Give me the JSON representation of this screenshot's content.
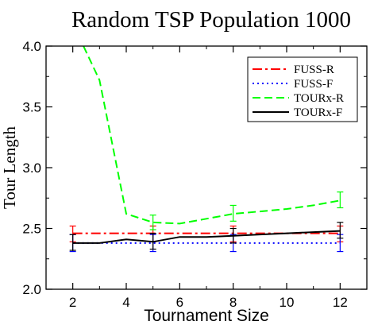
{
  "chart_data": {
    "type": "line",
    "title": "Random TSP  Population 1000",
    "xlabel": "Tournament Size",
    "ylabel": "Tour Length",
    "xlim": [
      1,
      13
    ],
    "ylim": [
      2.0,
      4.0
    ],
    "x_ticks": [
      2,
      4,
      6,
      8,
      10,
      12
    ],
    "y_ticks": [
      2.0,
      2.5,
      3.0,
      3.5,
      4.0
    ],
    "x_tick_labels": [
      "2",
      "4",
      "6",
      "8",
      "10",
      "12"
    ],
    "y_tick_labels": [
      "2.0",
      "2.5",
      "3.0",
      "3.5",
      "4.0"
    ],
    "grid": false,
    "legend_position": "top-right",
    "series": [
      {
        "name": "FUSS-R",
        "color": "#ff0000",
        "dash": "dash-dot",
        "x": [
          2,
          12
        ],
        "y": [
          2.46,
          2.46
        ],
        "error_bars": [
          {
            "x": 2,
            "low": 2.39,
            "high": 2.52
          },
          {
            "x": 5,
            "low": 2.39,
            "high": 2.52
          },
          {
            "x": 8,
            "low": 2.39,
            "high": 2.52
          },
          {
            "x": 12,
            "low": 2.39,
            "high": 2.52
          }
        ]
      },
      {
        "name": "FUSS-F",
        "color": "#0000ff",
        "dash": "dotted",
        "x": [
          2,
          12
        ],
        "y": [
          2.38,
          2.38
        ],
        "error_bars": [
          {
            "x": 2,
            "low": 2.31,
            "high": 2.45
          },
          {
            "x": 5,
            "low": 2.31,
            "high": 2.45
          },
          {
            "x": 8,
            "low": 2.31,
            "high": 2.45
          },
          {
            "x": 12,
            "low": 2.31,
            "high": 2.45
          }
        ]
      },
      {
        "name": "TOURx-R",
        "color": "#00ff00",
        "dash": "dashed",
        "x": [
          2.4,
          3,
          4,
          5,
          6,
          7,
          8,
          9,
          10,
          11,
          12
        ],
        "y": [
          4.0,
          3.72,
          2.62,
          2.55,
          2.54,
          2.58,
          2.62,
          2.64,
          2.66,
          2.69,
          2.73
        ],
        "error_bars": [
          {
            "x": 5,
            "low": 2.49,
            "high": 2.61
          },
          {
            "x": 8,
            "low": 2.56,
            "high": 2.69
          },
          {
            "x": 12,
            "low": 2.67,
            "high": 2.8
          }
        ]
      },
      {
        "name": "TOURx-F",
        "color": "#000000",
        "dash": "solid",
        "x": [
          2,
          3,
          4,
          5,
          6,
          7,
          8,
          9,
          10,
          11,
          12
        ],
        "y": [
          2.38,
          2.38,
          2.41,
          2.39,
          2.43,
          2.43,
          2.44,
          2.45,
          2.46,
          2.47,
          2.48
        ],
        "error_bars": [
          {
            "x": 2,
            "low": 2.32,
            "high": 2.45
          },
          {
            "x": 5,
            "low": 2.33,
            "high": 2.46
          },
          {
            "x": 8,
            "low": 2.38,
            "high": 2.5
          },
          {
            "x": 12,
            "low": 2.42,
            "high": 2.55
          }
        ]
      }
    ]
  }
}
